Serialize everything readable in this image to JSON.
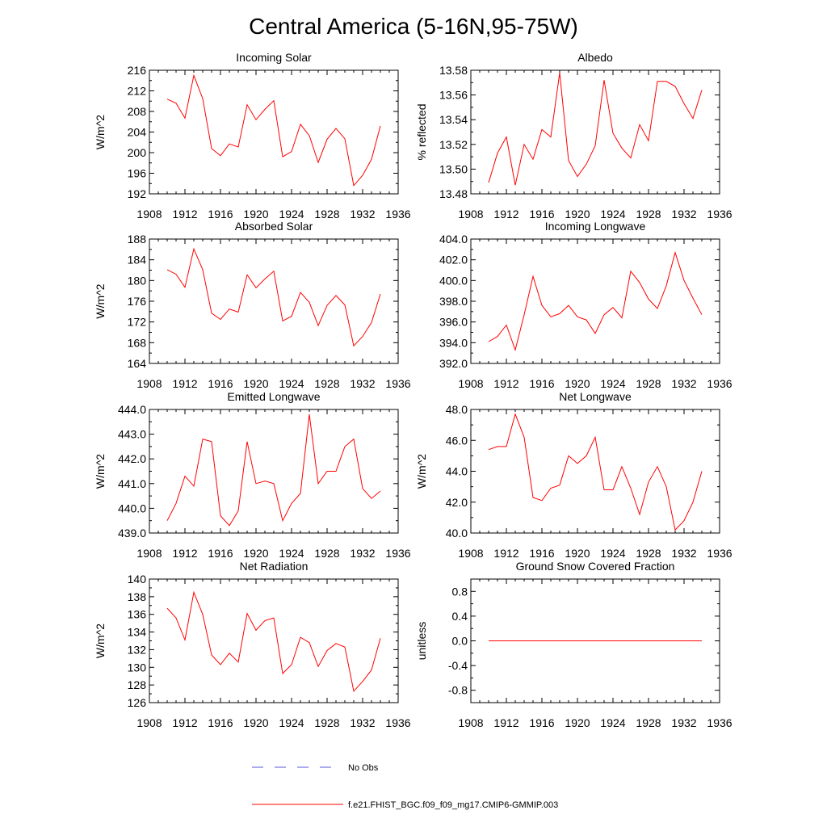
{
  "figure_title": "Central America (5-16N,95-75W)",
  "chart_data": [
    {
      "type": "line",
      "title": "Incoming Solar",
      "ylabel": "W/m^2",
      "xlabel": "",
      "xlim": [
        1908,
        1936
      ],
      "xticks": [
        1908,
        1912,
        1916,
        1920,
        1924,
        1928,
        1932,
        1936
      ],
      "ylim": [
        192,
        216
      ],
      "yticks": [
        "192",
        "196",
        "200",
        "204",
        "208",
        "212",
        "216"
      ],
      "series": [
        {
          "name": "f.e21.FHIST_BGC.f09_f09_mg17.CMIP6-GMMIP.003",
          "color": "#ff0000",
          "x": [
            1910,
            1911,
            1912,
            1913,
            1914,
            1915,
            1916,
            1917,
            1918,
            1919,
            1920,
            1921,
            1922,
            1923,
            1924,
            1925,
            1926,
            1927,
            1928,
            1929,
            1930,
            1931,
            1932,
            1933,
            1934
          ],
          "y": [
            210.4,
            209.6,
            206.7,
            215.0,
            210.5,
            200.8,
            199.4,
            201.7,
            201.1,
            209.3,
            206.4,
            208.4,
            210.1,
            199.2,
            200.2,
            205.5,
            203.3,
            198.1,
            202.6,
            204.7,
            202.7,
            193.6,
            195.6,
            198.7,
            205.2
          ]
        }
      ]
    },
    {
      "type": "line",
      "title": "Albedo",
      "ylabel": "% reflected",
      "xlabel": "",
      "xlim": [
        1908,
        1936
      ],
      "xticks": [
        1908,
        1912,
        1916,
        1920,
        1924,
        1928,
        1932,
        1936
      ],
      "ylim": [
        13.48,
        13.58
      ],
      "yticks": [
        "13.48",
        "13.50",
        "13.52",
        "13.54",
        "13.56",
        "13.58"
      ],
      "series": [
        {
          "name": "f.e21.FHIST_BGC.f09_f09_mg17.CMIP6-GMMIP.003",
          "color": "#ff0000",
          "x": [
            1910,
            1911,
            1912,
            1913,
            1914,
            1915,
            1916,
            1917,
            1918,
            1919,
            1920,
            1921,
            1922,
            1923,
            1924,
            1925,
            1926,
            1927,
            1928,
            1929,
            1930,
            1931,
            1932,
            1933,
            1934
          ],
          "y": [
            13.489,
            13.513,
            13.526,
            13.487,
            13.52,
            13.508,
            13.532,
            13.526,
            13.578,
            13.507,
            13.494,
            13.504,
            13.519,
            13.572,
            13.529,
            13.517,
            13.509,
            13.536,
            13.523,
            13.571,
            13.571,
            13.567,
            13.553,
            13.541,
            13.564
          ]
        }
      ]
    },
    {
      "type": "line",
      "title": "Absorbed Solar",
      "ylabel": "W/m^2",
      "xlabel": "",
      "xlim": [
        1908,
        1936
      ],
      "xticks": [
        1908,
        1912,
        1916,
        1920,
        1924,
        1928,
        1932,
        1936
      ],
      "ylim": [
        164,
        188
      ],
      "yticks": [
        "164",
        "168",
        "172",
        "176",
        "180",
        "184",
        "188"
      ],
      "series": [
        {
          "name": "f.e21.FHIST_BGC.f09_f09_mg17.CMIP6-GMMIP.003",
          "color": "#ff0000",
          "x": [
            1910,
            1911,
            1912,
            1913,
            1914,
            1915,
            1916,
            1917,
            1918,
            1919,
            1920,
            1921,
            1922,
            1923,
            1924,
            1925,
            1926,
            1927,
            1928,
            1929,
            1930,
            1931,
            1932,
            1933,
            1934
          ],
          "y": [
            182.1,
            181.2,
            178.7,
            186.1,
            182.1,
            173.7,
            172.5,
            174.5,
            173.9,
            181.1,
            178.6,
            180.3,
            181.8,
            172.2,
            173.1,
            177.7,
            175.8,
            171.3,
            175.2,
            177.1,
            175.3,
            167.4,
            169.2,
            171.9,
            177.4
          ]
        }
      ]
    },
    {
      "type": "line",
      "title": "Incoming Longwave",
      "ylabel": "",
      "xlabel": "",
      "xlim": [
        1908,
        1936
      ],
      "xticks": [
        1908,
        1912,
        1916,
        1920,
        1924,
        1928,
        1932,
        1936
      ],
      "ylim": [
        392.0,
        404.0
      ],
      "yticks": [
        "392.0",
        "394.0",
        "396.0",
        "398.0",
        "400.0",
        "402.0",
        "404.0"
      ],
      "series": [
        {
          "name": "f.e21.FHIST_BGC.f09_f09_mg17.CMIP6-GMMIP.003",
          "color": "#ff0000",
          "x": [
            1910,
            1911,
            1912,
            1913,
            1914,
            1915,
            1916,
            1917,
            1918,
            1919,
            1920,
            1921,
            1922,
            1923,
            1924,
            1925,
            1926,
            1927,
            1928,
            1929,
            1930,
            1931,
            1932,
            1933,
            1934
          ],
          "y": [
            394.1,
            394.6,
            395.7,
            393.3,
            396.7,
            400.4,
            397.6,
            396.5,
            396.8,
            397.6,
            396.5,
            396.2,
            394.9,
            396.7,
            397.4,
            396.4,
            400.9,
            399.8,
            398.2,
            397.3,
            399.5,
            402.7,
            400.0,
            398.3,
            396.7
          ]
        }
      ]
    },
    {
      "type": "line",
      "title": "Emitted Longwave",
      "ylabel": "W/m^2",
      "xlabel": "",
      "xlim": [
        1908,
        1936
      ],
      "xticks": [
        1908,
        1912,
        1916,
        1920,
        1924,
        1928,
        1932,
        1936
      ],
      "ylim": [
        439.0,
        444.0
      ],
      "yticks": [
        "439.0",
        "440.0",
        "441.0",
        "442.0",
        "443.0",
        "444.0"
      ],
      "series": [
        {
          "name": "f.e21.FHIST_BGC.f09_f09_mg17.CMIP6-GMMIP.003",
          "color": "#ff0000",
          "x": [
            1910,
            1911,
            1912,
            1913,
            1914,
            1915,
            1916,
            1917,
            1918,
            1919,
            1920,
            1921,
            1922,
            1923,
            1924,
            1925,
            1926,
            1927,
            1928,
            1929,
            1930,
            1931,
            1932,
            1933,
            1934
          ],
          "y": [
            439.5,
            440.2,
            441.3,
            440.9,
            442.8,
            442.7,
            439.7,
            439.3,
            439.9,
            442.7,
            441.0,
            441.1,
            441.0,
            439.5,
            440.2,
            440.6,
            443.8,
            441.0,
            441.5,
            441.5,
            442.5,
            442.8,
            440.8,
            440.4,
            440.7
          ]
        }
      ]
    },
    {
      "type": "line",
      "title": "Net Longwave",
      "ylabel": "W/m^2",
      "xlabel": "",
      "xlim": [
        1908,
        1936
      ],
      "xticks": [
        1908,
        1912,
        1916,
        1920,
        1924,
        1928,
        1932,
        1936
      ],
      "ylim": [
        40.0,
        48.0
      ],
      "yticks": [
        "40.0",
        "42.0",
        "44.0",
        "46.0",
        "48.0"
      ],
      "series": [
        {
          "name": "f.e21.FHIST_BGC.f09_f09_mg17.CMIP6-GMMIP.003",
          "color": "#ff0000",
          "x": [
            1910,
            1911,
            1912,
            1913,
            1914,
            1915,
            1916,
            1917,
            1918,
            1919,
            1920,
            1921,
            1922,
            1923,
            1924,
            1925,
            1926,
            1927,
            1928,
            1929,
            1930,
            1931,
            1932,
            1933,
            1934
          ],
          "y": [
            45.4,
            45.6,
            45.6,
            47.7,
            46.2,
            42.3,
            42.1,
            42.9,
            43.1,
            45.0,
            44.5,
            45.0,
            46.2,
            42.8,
            42.8,
            44.3,
            42.9,
            41.2,
            43.3,
            44.3,
            43.0,
            40.2,
            40.8,
            42.0,
            44.0
          ]
        }
      ]
    },
    {
      "type": "line",
      "title": "Net Radiation",
      "ylabel": "W/m^2",
      "xlabel": "",
      "xlim": [
        1908,
        1936
      ],
      "xticks": [
        1908,
        1912,
        1916,
        1920,
        1924,
        1928,
        1932,
        1936
      ],
      "ylim": [
        126,
        140
      ],
      "yticks": [
        "126",
        "128",
        "130",
        "132",
        "134",
        "136",
        "138",
        "140"
      ],
      "series": [
        {
          "name": "f.e21.FHIST_BGC.f09_f09_mg17.CMIP6-GMMIP.003",
          "color": "#ff0000",
          "x": [
            1910,
            1911,
            1912,
            1913,
            1914,
            1915,
            1916,
            1917,
            1918,
            1919,
            1920,
            1921,
            1922,
            1923,
            1924,
            1925,
            1926,
            1927,
            1928,
            1929,
            1930,
            1931,
            1932,
            1933,
            1934
          ],
          "y": [
            136.7,
            135.6,
            133.1,
            138.5,
            136.0,
            131.4,
            130.3,
            131.6,
            130.6,
            136.1,
            134.2,
            135.3,
            135.6,
            129.3,
            130.3,
            133.4,
            132.8,
            130.1,
            131.9,
            132.7,
            132.3,
            127.3,
            128.4,
            129.7,
            133.3
          ]
        }
      ]
    },
    {
      "type": "line",
      "title": "Ground Snow Covered Fraction",
      "ylabel": "unitless",
      "xlabel": "",
      "xlim": [
        1908,
        1936
      ],
      "xticks": [
        1908,
        1912,
        1916,
        1920,
        1924,
        1928,
        1932,
        1936
      ],
      "ylim": [
        -1.0,
        1.0
      ],
      "yticks": [
        "-0.8",
        "-0.4",
        "0.0",
        "0.4",
        "0.8"
      ],
      "ytick_values": [
        -0.8,
        -0.4,
        0.0,
        0.4,
        0.8
      ],
      "series": [
        {
          "name": "f.e21.FHIST_BGC.f09_f09_mg17.CMIP6-GMMIP.003",
          "color": "#ff0000",
          "x": [
            1910,
            1934
          ],
          "y": [
            0.0,
            0.0
          ]
        }
      ]
    }
  ],
  "legend": [
    {
      "label": "No Obs",
      "style": "dashed",
      "color": "#5a5ad8"
    },
    {
      "label": "f.e21.FHIST_BGC.f09_f09_mg17.CMIP6-GMMIP.003",
      "style": "solid",
      "color": "#ff0000"
    }
  ]
}
